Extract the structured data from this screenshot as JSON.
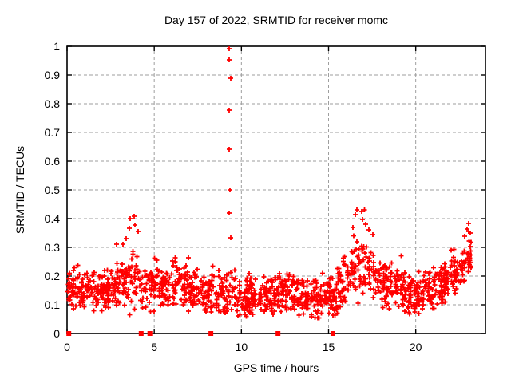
{
  "chart_data": {
    "type": "scatter",
    "title": "Day 157 of 2022, SRMTID for receiver momc",
    "xlabel": "GPS time / hours",
    "ylabel": "SRMTID / TECUs",
    "xlim": [
      0,
      24
    ],
    "ylim": [
      0,
      1
    ],
    "xticks": [
      0,
      5,
      10,
      15,
      20
    ],
    "yticks": [
      0,
      0.1,
      0.2,
      0.3,
      0.4,
      0.5,
      0.6,
      0.7,
      0.8,
      0.9,
      1
    ],
    "grid": true,
    "legend": "none",
    "marker": "plus",
    "marker_color": "#ff0000",
    "grid_color": "#9e9e9e",
    "border_color": "#000000",
    "background_color": "#ffffff",
    "outlier_points": [
      [
        9.32,
        0.992
      ],
      [
        9.32,
        0.952
      ],
      [
        9.38,
        0.889
      ],
      [
        9.31,
        0.778
      ],
      [
        9.31,
        0.642
      ],
      [
        9.35,
        0.5
      ],
      [
        9.3,
        0.42
      ],
      [
        9.37,
        0.332
      ],
      [
        3.62,
        0.4
      ],
      [
        3.58,
        0.368
      ],
      [
        3.86,
        0.408
      ],
      [
        3.9,
        0.378
      ],
      [
        4.06,
        0.355
      ],
      [
        3.38,
        0.33
      ],
      [
        2.82,
        0.31
      ],
      [
        16.62,
        0.43
      ],
      [
        16.55,
        0.415
      ],
      [
        16.88,
        0.425
      ],
      [
        16.95,
        0.398
      ],
      [
        17.12,
        0.38
      ],
      [
        16.4,
        0.37
      ],
      [
        17.3,
        0.36
      ],
      [
        17.55,
        0.345
      ],
      [
        22.95,
        0.365
      ],
      [
        23.05,
        0.355
      ],
      [
        22.8,
        0.34
      ]
    ],
    "zero_time_markers": [
      0.1,
      4.25,
      4.75,
      8.25,
      12.1,
      15.25
    ],
    "scatter_generator": {
      "seed": 20220157,
      "n_points": 1400,
      "x_min": 0.05,
      "x_max": 23.2,
      "y_min_clip": 0.025,
      "y_max_clip": 0.43,
      "burst_prob": 0.07,
      "burst_scale": 1.6,
      "spread_scale": 1.6,
      "envelope": [
        [
          0.0,
          0.16,
          0.055
        ],
        [
          0.5,
          0.155,
          0.05
        ],
        [
          1.5,
          0.145,
          0.05
        ],
        [
          2.5,
          0.15,
          0.055
        ],
        [
          3.3,
          0.17,
          0.065
        ],
        [
          3.9,
          0.18,
          0.075
        ],
        [
          4.3,
          0.155,
          0.055
        ],
        [
          5.0,
          0.15,
          0.05
        ],
        [
          5.8,
          0.16,
          0.06
        ],
        [
          6.5,
          0.175,
          0.06
        ],
        [
          7.2,
          0.15,
          0.055
        ],
        [
          8.0,
          0.14,
          0.05
        ],
        [
          8.8,
          0.15,
          0.055
        ],
        [
          9.3,
          0.16,
          0.065
        ],
        [
          9.8,
          0.125,
          0.05
        ],
        [
          10.5,
          0.125,
          0.05
        ],
        [
          11.2,
          0.135,
          0.05
        ],
        [
          12.0,
          0.14,
          0.05
        ],
        [
          12.8,
          0.145,
          0.05
        ],
        [
          13.6,
          0.13,
          0.05
        ],
        [
          14.4,
          0.115,
          0.045
        ],
        [
          15.2,
          0.13,
          0.05
        ],
        [
          15.8,
          0.17,
          0.06
        ],
        [
          16.4,
          0.21,
          0.075
        ],
        [
          16.9,
          0.245,
          0.09
        ],
        [
          17.4,
          0.21,
          0.075
        ],
        [
          18.0,
          0.18,
          0.065
        ],
        [
          18.8,
          0.16,
          0.055
        ],
        [
          19.6,
          0.14,
          0.05
        ],
        [
          20.4,
          0.145,
          0.05
        ],
        [
          21.2,
          0.16,
          0.05
        ],
        [
          22.0,
          0.185,
          0.05
        ],
        [
          22.7,
          0.225,
          0.05
        ],
        [
          23.2,
          0.27,
          0.05
        ]
      ]
    }
  }
}
